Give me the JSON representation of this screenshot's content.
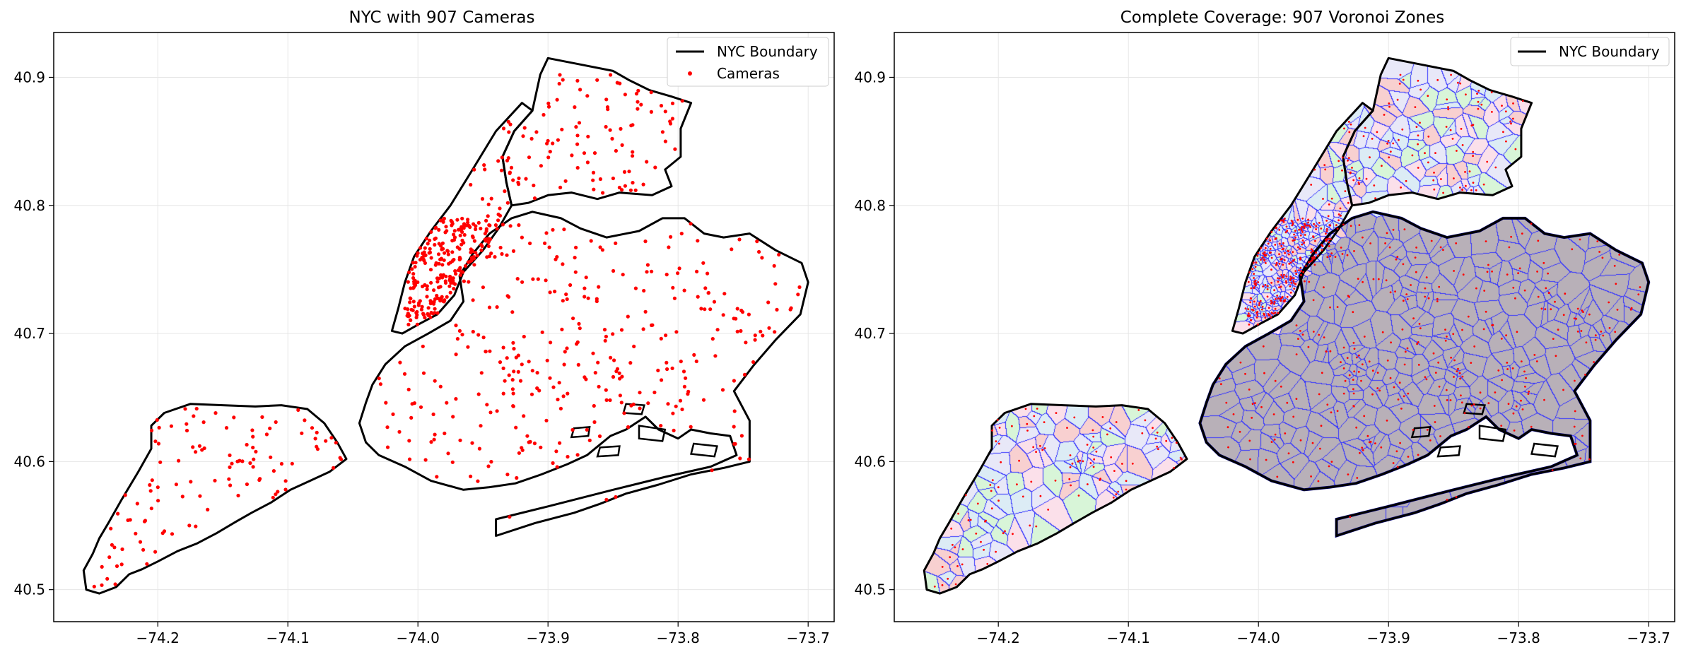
{
  "figure": {
    "panels": [
      {
        "title": "NYC with 907 Cameras",
        "legend": [
          {
            "label": "NYC Boundary",
            "kind": "line",
            "color": "#000000"
          },
          {
            "label": "Cameras",
            "kind": "marker",
            "color": "#ff0000"
          }
        ]
      },
      {
        "title": "Complete Coverage: 907 Voronoi Zones",
        "legend": [
          {
            "label": "NYC Boundary",
            "kind": "line",
            "color": "#000000"
          }
        ]
      }
    ]
  },
  "chart_data": [
    {
      "type": "scatter",
      "title": "NYC with 907 Cameras",
      "xlim": [
        -74.28,
        -73.68
      ],
      "ylim": [
        40.475,
        40.935
      ],
      "xticks": [
        -74.2,
        -74.1,
        -74.0,
        -73.9,
        -73.8,
        -73.7
      ],
      "xtick_labels": [
        "−74.2",
        "−74.1",
        "−74.0",
        "−73.9",
        "−73.8",
        "−73.7"
      ],
      "yticks": [
        40.5,
        40.6,
        40.7,
        40.8,
        40.9
      ],
      "ytick_labels": [
        "40.5",
        "40.6",
        "40.7",
        "40.8",
        "40.9"
      ],
      "grid": true,
      "legend_position": "top-right",
      "camera_color": "#ff0000",
      "boundary_color": "#000000",
      "camera_count": 907
    },
    {
      "type": "map",
      "title": "Complete Coverage: 907 Voronoi Zones",
      "xlim": [
        -74.28,
        -73.68
      ],
      "ylim": [
        40.475,
        40.935
      ],
      "xticks": [
        -74.2,
        -74.1,
        -74.0,
        -73.9,
        -73.8,
        -73.7
      ],
      "xtick_labels": [
        "−74.2",
        "−74.1",
        "−74.0",
        "−73.9",
        "−73.8",
        "−73.7"
      ],
      "yticks": [
        40.5,
        40.6,
        40.7,
        40.8,
        40.9
      ],
      "ytick_labels": [
        "40.5",
        "40.6",
        "40.7",
        "40.8",
        "40.9"
      ],
      "grid": true,
      "legend_position": "top-right",
      "zone_colors": [
        "#f8d0d0",
        "#d8f5d8",
        "#dcecf5",
        "#fbe0ea",
        "#e8e8f8"
      ],
      "zone_edge_color": "#3333ff",
      "overlay_fill_color": "#b8b0b8",
      "overlay_edge_color": "#000080",
      "zone_count": 907
    }
  ],
  "geo": {
    "staten_island": [
      [
        -74.255,
        40.5
      ],
      [
        -74.245,
        40.497
      ],
      [
        -74.232,
        40.502
      ],
      [
        -74.222,
        40.512
      ],
      [
        -74.212,
        40.516
      ],
      [
        -74.2,
        40.522
      ],
      [
        -74.185,
        40.53
      ],
      [
        -74.17,
        40.536
      ],
      [
        -74.155,
        40.544
      ],
      [
        -74.14,
        40.553
      ],
      [
        -74.128,
        40.56
      ],
      [
        -74.113,
        40.568
      ],
      [
        -74.098,
        40.578
      ],
      [
        -74.083,
        40.585
      ],
      [
        -74.068,
        40.592
      ],
      [
        -74.055,
        40.602
      ],
      [
        -74.062,
        40.615
      ],
      [
        -74.072,
        40.63
      ],
      [
        -74.085,
        40.641
      ],
      [
        -74.105,
        40.644
      ],
      [
        -74.125,
        40.643
      ],
      [
        -74.15,
        40.644
      ],
      [
        -74.175,
        40.645
      ],
      [
        -74.195,
        40.638
      ],
      [
        -74.205,
        40.628
      ],
      [
        -74.205,
        40.61
      ],
      [
        -74.215,
        40.592
      ],
      [
        -74.228,
        40.57
      ],
      [
        -74.238,
        40.552
      ],
      [
        -74.245,
        40.54
      ],
      [
        -74.25,
        40.528
      ],
      [
        -74.257,
        40.515
      ],
      [
        -74.255,
        40.5
      ]
    ],
    "brooklyn_queens": [
      [
        -73.94,
        40.542
      ],
      [
        -73.91,
        40.552
      ],
      [
        -73.88,
        40.56
      ],
      [
        -73.86,
        40.567
      ],
      [
        -73.84,
        40.575
      ],
      [
        -73.815,
        40.582
      ],
      [
        -73.79,
        40.59
      ],
      [
        -73.765,
        40.595
      ],
      [
        -73.745,
        40.6
      ],
      [
        -73.745,
        40.632
      ],
      [
        -73.757,
        40.655
      ],
      [
        -73.742,
        40.675
      ],
      [
        -73.725,
        40.695
      ],
      [
        -73.706,
        40.715
      ],
      [
        -73.7,
        40.74
      ],
      [
        -73.705,
        40.755
      ],
      [
        -73.725,
        40.765
      ],
      [
        -73.745,
        40.778
      ],
      [
        -73.765,
        40.775
      ],
      [
        -73.78,
        40.778
      ],
      [
        -73.795,
        40.79
      ],
      [
        -73.812,
        40.79
      ],
      [
        -73.83,
        40.78
      ],
      [
        -73.855,
        40.775
      ],
      [
        -73.875,
        40.782
      ],
      [
        -73.89,
        40.79
      ],
      [
        -73.912,
        40.795
      ],
      [
        -73.928,
        40.79
      ],
      [
        -73.945,
        40.778
      ],
      [
        -73.958,
        40.762
      ],
      [
        -73.968,
        40.745
      ],
      [
        -73.965,
        40.725
      ],
      [
        -73.975,
        40.71
      ],
      [
        -73.992,
        40.7
      ],
      [
        -74.01,
        40.69
      ],
      [
        -74.025,
        40.676
      ],
      [
        -74.035,
        40.66
      ],
      [
        -74.04,
        40.646
      ],
      [
        -74.045,
        40.63
      ],
      [
        -74.04,
        40.615
      ],
      [
        -74.03,
        40.605
      ],
      [
        -74.01,
        40.596
      ],
      [
        -73.99,
        40.585
      ],
      [
        -73.965,
        40.578
      ],
      [
        -73.945,
        40.58
      ],
      [
        -73.925,
        40.583
      ],
      [
        -73.905,
        40.59
      ],
      [
        -73.885,
        40.598
      ],
      [
        -73.87,
        40.605
      ],
      [
        -73.852,
        40.62
      ],
      [
        -73.84,
        40.625
      ],
      [
        -73.825,
        40.635
      ],
      [
        -73.815,
        40.625
      ],
      [
        -73.8,
        40.618
      ],
      [
        -73.79,
        40.625
      ],
      [
        -73.775,
        40.622
      ],
      [
        -73.76,
        40.62
      ],
      [
        -73.755,
        40.605
      ],
      [
        -73.775,
        40.596
      ],
      [
        -73.81,
        40.588
      ],
      [
        -73.85,
        40.578
      ],
      [
        -73.9,
        40.565
      ],
      [
        -73.94,
        40.555
      ],
      [
        -73.94,
        40.542
      ]
    ],
    "manhattan": [
      [
        -74.02,
        40.702
      ],
      [
        -74.012,
        40.7
      ],
      [
        -73.998,
        40.708
      ],
      [
        -73.985,
        40.715
      ],
      [
        -73.972,
        40.73
      ],
      [
        -73.965,
        40.748
      ],
      [
        -73.95,
        40.765
      ],
      [
        -73.938,
        40.782
      ],
      [
        -73.928,
        40.8
      ],
      [
        -73.932,
        40.818
      ],
      [
        -73.935,
        40.838
      ],
      [
        -73.926,
        40.858
      ],
      [
        -73.912,
        40.874
      ],
      [
        -73.92,
        40.88
      ],
      [
        -73.94,
        40.858
      ],
      [
        -73.958,
        40.828
      ],
      [
        -73.975,
        40.8
      ],
      [
        -73.99,
        40.78
      ],
      [
        -74.003,
        40.76
      ],
      [
        -74.01,
        40.74
      ],
      [
        -74.015,
        40.72
      ],
      [
        -74.02,
        40.702
      ]
    ],
    "bronx": [
      [
        -73.912,
        40.874
      ],
      [
        -73.906,
        40.902
      ],
      [
        -73.9,
        40.915
      ],
      [
        -73.875,
        40.91
      ],
      [
        -73.85,
        40.905
      ],
      [
        -73.838,
        40.898
      ],
      [
        -73.822,
        40.89
      ],
      [
        -73.805,
        40.885
      ],
      [
        -73.79,
        40.88
      ],
      [
        -73.798,
        40.86
      ],
      [
        -73.798,
        40.838
      ],
      [
        -73.81,
        40.828
      ],
      [
        -73.805,
        40.815
      ],
      [
        -73.82,
        40.808
      ],
      [
        -73.845,
        40.81
      ],
      [
        -73.862,
        40.805
      ],
      [
        -73.882,
        40.81
      ],
      [
        -73.9,
        40.808
      ],
      [
        -73.915,
        40.802
      ],
      [
        -73.928,
        40.8
      ],
      [
        -73.932,
        40.818
      ],
      [
        -73.935,
        40.838
      ],
      [
        -73.926,
        40.858
      ],
      [
        -73.912,
        40.874
      ]
    ],
    "ring_islands": [
      [
        [
          -73.83,
          40.628
        ],
        [
          -73.81,
          40.625
        ],
        [
          -73.812,
          40.616
        ],
        [
          -73.83,
          40.618
        ]
      ],
      [
        [
          -73.86,
          40.611
        ],
        [
          -73.845,
          40.612
        ],
        [
          -73.846,
          40.605
        ],
        [
          -73.862,
          40.604
        ]
      ],
      [
        [
          -73.788,
          40.614
        ],
        [
          -73.77,
          40.612
        ],
        [
          -73.772,
          40.604
        ],
        [
          -73.79,
          40.606
        ]
      ],
      [
        [
          -73.84,
          40.645
        ],
        [
          -73.826,
          40.644
        ],
        [
          -73.828,
          40.637
        ],
        [
          -73.842,
          40.638
        ]
      ],
      [
        [
          -73.88,
          40.626
        ],
        [
          -73.868,
          40.627
        ],
        [
          -73.869,
          40.62
        ],
        [
          -73.882,
          40.619
        ]
      ]
    ],
    "manhattan_cameras": {
      "lon": [
        -74.01,
        -73.935
      ],
      "lat": [
        40.703,
        40.79
      ],
      "count": 250
    },
    "seed": 42
  }
}
